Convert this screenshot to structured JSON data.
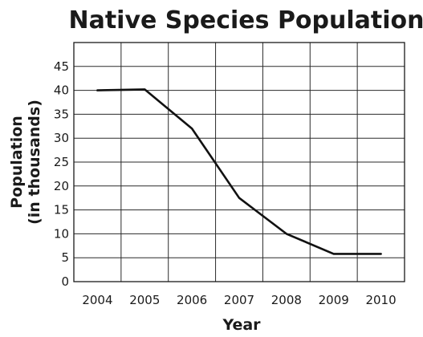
{
  "chart_data": {
    "type": "line",
    "title": "Native Species Population",
    "xlabel": "Year",
    "ylabel_line1": "Population",
    "ylabel_line2": "(in thousands)",
    "categories": [
      "2004",
      "2005",
      "2006",
      "2007",
      "2008",
      "2009",
      "2010"
    ],
    "series": [
      {
        "name": "Native Species",
        "values": [
          40,
          40.2,
          32,
          17.5,
          10,
          5.8,
          5.8
        ]
      }
    ],
    "ylim": [
      0,
      50
    ],
    "yticks": [
      0,
      5,
      10,
      15,
      20,
      25,
      30,
      35,
      40,
      45
    ],
    "grid": true,
    "line_color": "#111111",
    "grid_color": "#2a2a2a"
  }
}
